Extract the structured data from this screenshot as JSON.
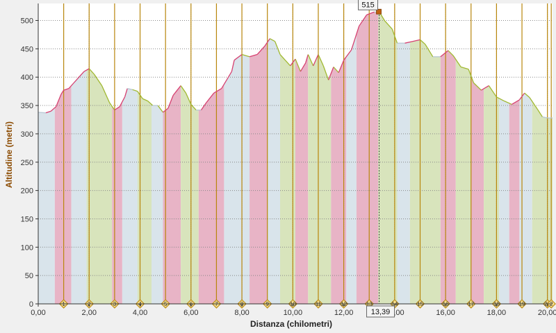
{
  "chart_data": {
    "type": "area",
    "xlabel": "Distanza (chilometri)",
    "ylabel": "Altitudine (metri)",
    "xlim": [
      0,
      20
    ],
    "ylim": [
      0,
      530
    ],
    "x_ticks": [
      "0,00",
      "2,00",
      "4,00",
      "6,00",
      "8,00",
      "10,00",
      "12,00",
      "14,00",
      "16,00",
      "18,00",
      "20,00"
    ],
    "y_ticks": [
      "0",
      "50",
      "100",
      "150",
      "200",
      "250",
      "300",
      "350",
      "400",
      "450",
      "500"
    ],
    "grid": true,
    "profile": [
      [
        0,
        338
      ],
      [
        0.3,
        337
      ],
      [
        0.5,
        340
      ],
      [
        0.7,
        348
      ],
      [
        0.9,
        370
      ],
      [
        1.0,
        377
      ],
      [
        1.2,
        380
      ],
      [
        1.4,
        390
      ],
      [
        1.6,
        400
      ],
      [
        1.8,
        410
      ],
      [
        2.0,
        415
      ],
      [
        2.2,
        405
      ],
      [
        2.5,
        385
      ],
      [
        2.8,
        355
      ],
      [
        3.0,
        342
      ],
      [
        3.2,
        348
      ],
      [
        3.4,
        365
      ],
      [
        3.5,
        380
      ],
      [
        3.7,
        378
      ],
      [
        3.9,
        375
      ],
      [
        4.1,
        362
      ],
      [
        4.3,
        358
      ],
      [
        4.5,
        350
      ],
      [
        4.7,
        350
      ],
      [
        4.9,
        338
      ],
      [
        5.1,
        345
      ],
      [
        5.3,
        368
      ],
      [
        5.6,
        385
      ],
      [
        5.8,
        372
      ],
      [
        6.0,
        352
      ],
      [
        6.2,
        342
      ],
      [
        6.4,
        342
      ],
      [
        6.6,
        355
      ],
      [
        6.9,
        372
      ],
      [
        7.2,
        380
      ],
      [
        7.4,
        395
      ],
      [
        7.6,
        410
      ],
      [
        7.7,
        430
      ],
      [
        8.0,
        440
      ],
      [
        8.3,
        436
      ],
      [
        8.6,
        440
      ],
      [
        8.9,
        455
      ],
      [
        9.1,
        468
      ],
      [
        9.3,
        463
      ],
      [
        9.5,
        440
      ],
      [
        9.7,
        430
      ],
      [
        9.9,
        420
      ],
      [
        10.1,
        432
      ],
      [
        10.3,
        410
      ],
      [
        10.5,
        425
      ],
      [
        10.6,
        440
      ],
      [
        10.8,
        420
      ],
      [
        11.0,
        440
      ],
      [
        11.2,
        420
      ],
      [
        11.4,
        395
      ],
      [
        11.6,
        418
      ],
      [
        11.8,
        408
      ],
      [
        12.0,
        430
      ],
      [
        12.3,
        448
      ],
      [
        12.6,
        490
      ],
      [
        12.9,
        510
      ],
      [
        13.2,
        515
      ],
      [
        13.4,
        515
      ],
      [
        13.6,
        500
      ],
      [
        13.9,
        485
      ],
      [
        14.1,
        460
      ],
      [
        14.4,
        460
      ],
      [
        14.7,
        463
      ],
      [
        15.0,
        466
      ],
      [
        15.2,
        458
      ],
      [
        15.5,
        436
      ],
      [
        15.8,
        436
      ],
      [
        16.1,
        447
      ],
      [
        16.3,
        438
      ],
      [
        16.6,
        418
      ],
      [
        16.9,
        414
      ],
      [
        17.1,
        390
      ],
      [
        17.4,
        377
      ],
      [
        17.7,
        385
      ],
      [
        18.0,
        365
      ],
      [
        18.3,
        358
      ],
      [
        18.6,
        352
      ],
      [
        18.9,
        360
      ],
      [
        19.1,
        372
      ],
      [
        19.3,
        364
      ],
      [
        19.6,
        344
      ],
      [
        19.8,
        330
      ],
      [
        20.0,
        328
      ],
      [
        20.2,
        328
      ]
    ],
    "bands": [
      {
        "from": 0.0,
        "to": 0.65,
        "color": "#d9e4eb"
      },
      {
        "from": 0.65,
        "to": 1.3,
        "color": "#e8b4c6"
      },
      {
        "from": 1.3,
        "to": 1.9,
        "color": "#d9e4eb"
      },
      {
        "from": 1.9,
        "to": 2.9,
        "color": "#d8e4bc"
      },
      {
        "from": 2.9,
        "to": 3.3,
        "color": "#e8b4c6"
      },
      {
        "from": 3.3,
        "to": 3.9,
        "color": "#d9e4eb"
      },
      {
        "from": 3.9,
        "to": 4.45,
        "color": "#d8e4bc"
      },
      {
        "from": 4.45,
        "to": 4.9,
        "color": "#d9e4eb"
      },
      {
        "from": 4.9,
        "to": 5.6,
        "color": "#e8b4c6"
      },
      {
        "from": 5.6,
        "to": 6.3,
        "color": "#d8e4bc"
      },
      {
        "from": 6.3,
        "to": 7.3,
        "color": "#e8b4c6"
      },
      {
        "from": 7.3,
        "to": 8.3,
        "color": "#d9e4eb"
      },
      {
        "from": 8.3,
        "to": 9.0,
        "color": "#e8b4c6"
      },
      {
        "from": 9.0,
        "to": 9.5,
        "color": "#d9e4eb"
      },
      {
        "from": 9.5,
        "to": 10.1,
        "color": "#d8e4bc"
      },
      {
        "from": 10.1,
        "to": 10.6,
        "color": "#e8b4c6"
      },
      {
        "from": 10.6,
        "to": 11.5,
        "color": "#d8e4bc"
      },
      {
        "from": 11.5,
        "to": 12.1,
        "color": "#e8b4c6"
      },
      {
        "from": 12.1,
        "to": 12.5,
        "color": "#d9e4eb"
      },
      {
        "from": 12.5,
        "to": 13.35,
        "color": "#e8b4c6"
      },
      {
        "from": 13.35,
        "to": 14.1,
        "color": "#d8e4bc"
      },
      {
        "from": 14.1,
        "to": 14.6,
        "color": "#d9e4eb"
      },
      {
        "from": 14.6,
        "to": 15.8,
        "color": "#d8e4bc"
      },
      {
        "from": 15.8,
        "to": 16.4,
        "color": "#e8b4c6"
      },
      {
        "from": 16.4,
        "to": 17.0,
        "color": "#d8e4bc"
      },
      {
        "from": 17.0,
        "to": 17.5,
        "color": "#e8b4c6"
      },
      {
        "from": 17.5,
        "to": 18.1,
        "color": "#d8e4bc"
      },
      {
        "from": 18.1,
        "to": 18.5,
        "color": "#d9e4eb"
      },
      {
        "from": 18.5,
        "to": 18.9,
        "color": "#e8b4c6"
      },
      {
        "from": 18.9,
        "to": 19.4,
        "color": "#d9e4eb"
      },
      {
        "from": 19.4,
        "to": 20.2,
        "color": "#d8e4bc"
      }
    ],
    "markers": [
      {
        "km": 1.0,
        "label": "1"
      },
      {
        "km": 2.0,
        "label": "2"
      },
      {
        "km": 3.0,
        "label": "3"
      },
      {
        "km": 4.0,
        "label": "4"
      },
      {
        "km": 5.0,
        "label": "5"
      },
      {
        "km": 6.0,
        "label": "6"
      },
      {
        "km": 7.0,
        "label": "7"
      },
      {
        "km": 8.0,
        "label": "8"
      },
      {
        "km": 9.0,
        "label": "9"
      },
      {
        "km": 10.0,
        "label": "10"
      },
      {
        "km": 11.0,
        "label": "11"
      },
      {
        "km": 12.0,
        "label": "12"
      },
      {
        "km": 13.0,
        "label": "13"
      },
      {
        "km": 14.0,
        "label": "14"
      },
      {
        "km": 15.0,
        "label": "15"
      },
      {
        "km": 16.0,
        "label": "16"
      },
      {
        "km": 17.0,
        "label": "17"
      },
      {
        "km": 18.0,
        "label": "18"
      },
      {
        "km": 19.0,
        "label": "19"
      },
      {
        "km": 20.0,
        "label": "20"
      },
      {
        "km": 20.15,
        "label": "2"
      }
    ],
    "cursor": {
      "km": 13.39,
      "altitude": 515,
      "x_label": "13,39",
      "y_label": "515"
    },
    "colors": {
      "marker_line": "#b8860b",
      "marker_fill": "#f5dd8c",
      "up_line": "#d64070",
      "down_line": "#a0b830",
      "flat_line": "#b8c8d4",
      "axis_title": "#8b4a00",
      "grid": "#888888"
    }
  }
}
